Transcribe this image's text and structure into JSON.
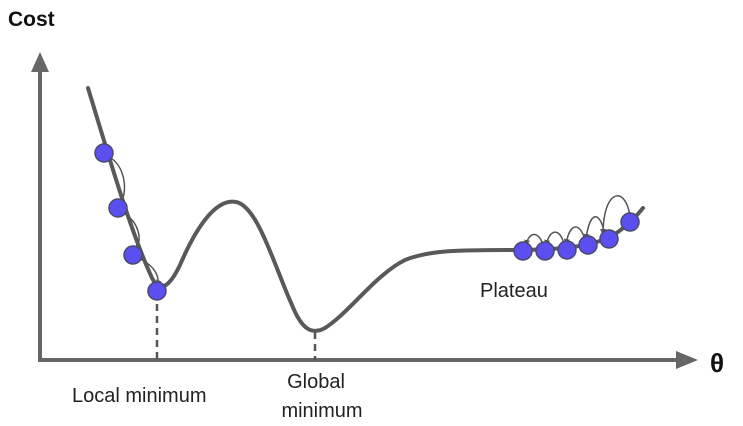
{
  "labels": {
    "y_axis": "Cost",
    "x_axis": "θ",
    "local_minimum": "Local minimum",
    "global_minimum_line1": "Global",
    "global_minimum_line2": "minimum",
    "plateau": "Plateau"
  },
  "colors": {
    "curve": "#595959",
    "axis": "#666666",
    "ball_fill": "#5b4ff0",
    "ball_stroke": "#4a4a6a",
    "arrow": "#555555",
    "text": "#222222"
  }
}
